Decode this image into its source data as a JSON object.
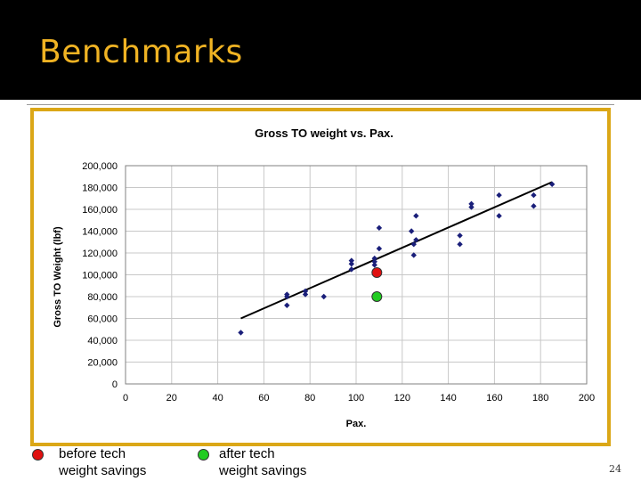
{
  "slide": {
    "title": "Benchmarks",
    "page_number": "24"
  },
  "legend": {
    "items": [
      {
        "color": "#e01010",
        "line1": "before tech",
        "line2": "weight savings"
      },
      {
        "color": "#22cc22",
        "line1": "after tech",
        "line2": "weight savings"
      }
    ]
  },
  "colors": {
    "title": "#f0b323",
    "frame_border": "#dba717",
    "data_point": "#1a1f7a",
    "trend_line": "#000000"
  },
  "chart_data": {
    "type": "scatter",
    "title": "Gross TO weight vs. Pax.",
    "xlabel": "Pax.",
    "ylabel": "Gross TO Weight (lbf)",
    "xlim": [
      0,
      200
    ],
    "ylim": [
      0,
      200000
    ],
    "xticks": [
      0,
      20,
      40,
      60,
      80,
      100,
      120,
      140,
      160,
      180,
      200
    ],
    "yticks": [
      0,
      20000,
      40000,
      60000,
      80000,
      100000,
      120000,
      140000,
      160000,
      180000,
      200000
    ],
    "ytick_labels": [
      "0",
      "20,000",
      "40,000",
      "60,000",
      "80,000",
      "100,000",
      "120,000",
      "140,000",
      "160,000",
      "180,000",
      "200,000"
    ],
    "grid": true,
    "series": [
      {
        "marker": "diamond",
        "color": "#1a1f7a",
        "points": [
          [
            50,
            47000
          ],
          [
            70,
            72000
          ],
          [
            70,
            80000
          ],
          [
            70,
            82000
          ],
          [
            78,
            82000
          ],
          [
            78,
            85000
          ],
          [
            86,
            80000
          ],
          [
            98,
            105000
          ],
          [
            98,
            110000
          ],
          [
            98,
            113000
          ],
          [
            108,
            109000
          ],
          [
            108,
            112000
          ],
          [
            108,
            115000
          ],
          [
            110,
            124000
          ],
          [
            110,
            143000
          ],
          [
            124,
            140000
          ],
          [
            125,
            118000
          ],
          [
            125,
            128000
          ],
          [
            126,
            132000
          ],
          [
            126,
            154000
          ],
          [
            145,
            128000
          ],
          [
            145,
            136000
          ],
          [
            150,
            162000
          ],
          [
            150,
            165000
          ],
          [
            162,
            154000
          ],
          [
            162,
            173000
          ],
          [
            177,
            163000
          ],
          [
            177,
            173000
          ],
          [
            185,
            183000
          ]
        ]
      }
    ],
    "trend_line": {
      "x": [
        50,
        185
      ],
      "y": [
        60000,
        185000
      ]
    },
    "highlight_points": [
      {
        "x": 109,
        "y": 102000,
        "color": "#e01010"
      },
      {
        "x": 109,
        "y": 80000,
        "color": "#22cc22"
      }
    ]
  }
}
